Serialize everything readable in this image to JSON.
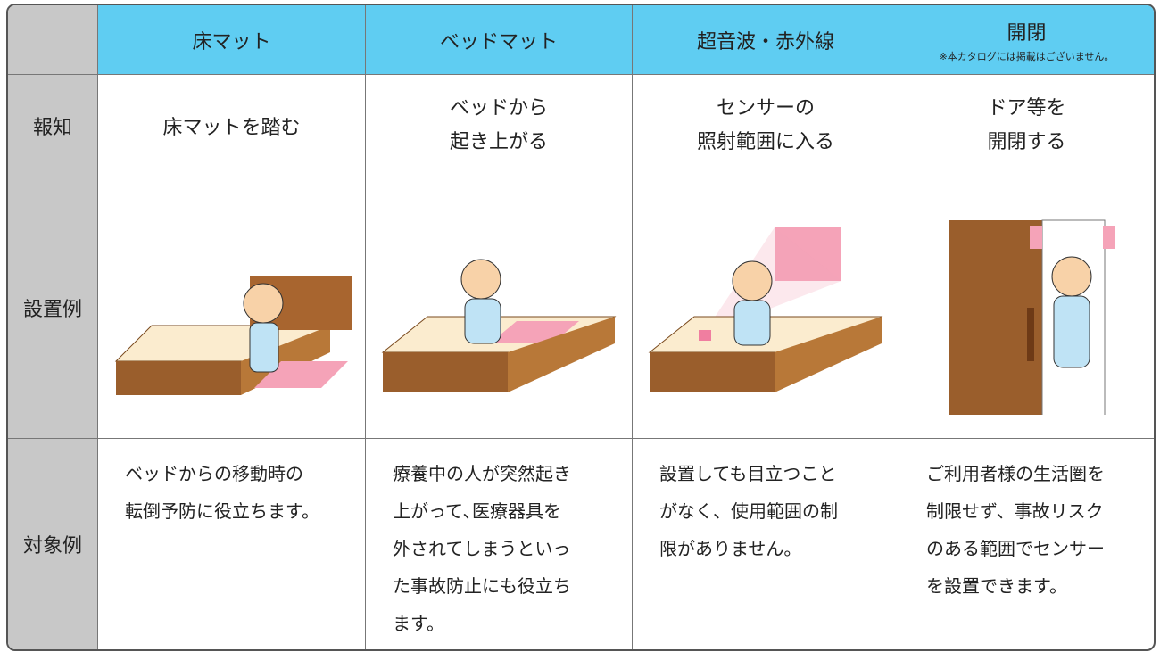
{
  "table": {
    "corner": "",
    "columns": [
      "床マット",
      "ベッドマット",
      "超音波・赤外線",
      "開閉"
    ],
    "column_note": "※本カタログには掲載はございません。",
    "rows": [
      {
        "label": "報知",
        "cells": [
          [
            "床マットを踏む"
          ],
          [
            "ベッドから",
            "起き上がる"
          ],
          [
            "センサーの",
            "照射範囲に入る"
          ],
          [
            "ドア等を",
            "開閉する"
          ]
        ]
      },
      {
        "label": "設置例"
      },
      {
        "label": "対象例",
        "cells": [
          [
            "ベッドからの移動時の",
            "転倒予防に役立ちます。"
          ],
          [
            "療養中の人が突然起き",
            "上がって､医療器具を",
            "外されてしまうといっ",
            "た事故防止にも役立ち",
            "ます。"
          ],
          [
            "設置しても目立つこと",
            "がなく、使用範囲の制",
            "限がありません。"
          ],
          [
            "ご利用者様の生活圏を",
            "制限せず、事故リスク",
            "のある範囲でセンサー",
            "を設置できます。"
          ]
        ]
      }
    ]
  }
}
